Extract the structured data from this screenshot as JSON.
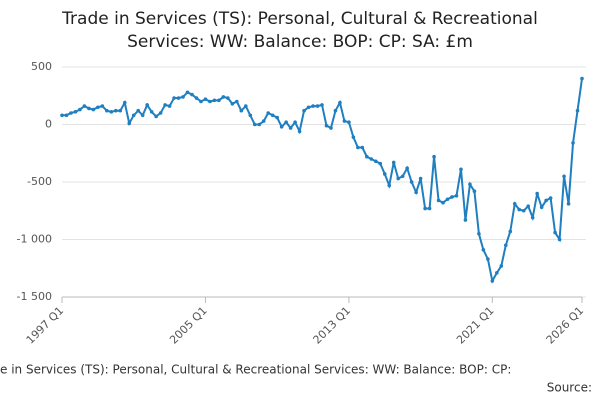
{
  "chart_data": {
    "type": "line",
    "title": [
      "Trade in Services (TS): Personal, Cultural & Recreational",
      "Services: WW: Balance: BOP: CP: SA: £m"
    ],
    "footer": "e in Services (TS): Personal, Cultural & Recreational Services: WW: Balance: BOP: CP:",
    "source": "Source:",
    "categories": [
      "1997 Q1",
      null,
      null,
      null,
      null,
      null,
      null,
      null,
      null,
      null,
      null,
      null,
      null,
      null,
      null,
      null,
      null,
      null,
      null,
      null,
      null,
      null,
      null,
      null,
      null,
      null,
      null,
      null,
      null,
      null,
      null,
      null,
      "2005 Q1",
      null,
      null,
      null,
      null,
      null,
      null,
      null,
      null,
      null,
      null,
      null,
      null,
      null,
      null,
      null,
      null,
      null,
      null,
      null,
      null,
      null,
      null,
      null,
      null,
      null,
      null,
      null,
      null,
      null,
      null,
      null,
      "2013 Q1",
      null,
      null,
      null,
      null,
      null,
      null,
      null,
      null,
      null,
      null,
      null,
      null,
      null,
      null,
      null,
      null,
      null,
      null,
      null,
      null,
      null,
      null,
      null,
      null,
      null,
      null,
      null,
      null,
      null,
      null,
      null,
      "2021 Q1",
      null,
      null,
      null,
      null,
      null,
      null,
      null,
      null,
      null,
      null,
      null,
      null,
      null,
      null,
      null,
      null,
      null,
      null,
      null,
      "2026 Q1"
    ],
    "values": [
      80,
      80,
      100,
      110,
      130,
      160,
      140,
      130,
      150,
      160,
      120,
      110,
      120,
      120,
      190,
      10,
      80,
      120,
      80,
      170,
      110,
      70,
      100,
      170,
      160,
      230,
      230,
      240,
      280,
      260,
      230,
      200,
      220,
      200,
      210,
      210,
      240,
      230,
      180,
      200,
      120,
      160,
      80,
      0,
      0,
      30,
      100,
      80,
      60,
      -20,
      20,
      -30,
      20,
      -60,
      120,
      150,
      160,
      160,
      170,
      -10,
      -30,
      120,
      190,
      30,
      20,
      -110,
      -200,
      -200,
      -280,
      -300,
      -320,
      -340,
      -430,
      -530,
      -330,
      -470,
      -450,
      -380,
      -500,
      -590,
      -470,
      -730,
      -730,
      -280,
      -660,
      -680,
      -650,
      -630,
      -620,
      -390,
      -830,
      -520,
      -580,
      -950,
      -1090,
      -1170,
      -1360,
      -1290,
      -1230,
      -1050,
      -930,
      -690,
      -740,
      -750,
      -710,
      -810,
      -600,
      -720,
      -660,
      -640,
      -940,
      -1000,
      -450,
      -690,
      -160,
      120,
      400
    ],
    "color": "#1f7fc0",
    "ylim": [
      -1500,
      500
    ],
    "yticks": [
      {
        "value": -1500,
        "label": "-1 500"
      },
      {
        "value": -1000,
        "label": "-1 000"
      },
      -500,
      0,
      500
    ],
    "grid": true
  }
}
